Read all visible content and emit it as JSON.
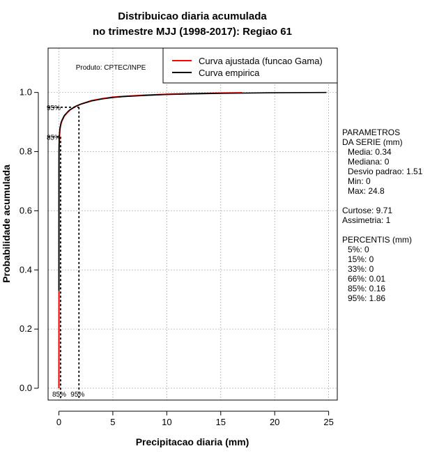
{
  "chart_data": {
    "type": "line",
    "title_line1": "Distribuicao diaria acumulada",
    "title_line2": "no trimestre MJJ (1998-2017): Regiao 61",
    "xlabel": "Precipitacao diaria (mm)",
    "ylabel": "Probabilidade acumulada",
    "xlim": [
      -1,
      25.8
    ],
    "ylim": [
      -0.04,
      1.15
    ],
    "x_ticks": [
      0,
      5,
      10,
      15,
      20,
      25
    ],
    "x_tick_labels": [
      "0",
      "5",
      "10",
      "15",
      "20",
      "25"
    ],
    "y_ticks": [
      0.0,
      0.2,
      0.4,
      0.6,
      0.8,
      1.0
    ],
    "y_tick_labels": [
      "0.0",
      "0.2",
      "0.4",
      "0.6",
      "0.8",
      "1.0"
    ],
    "grid": true,
    "product_label": "Produto: CPTEC/INPE",
    "legend_position": "top-right",
    "series": [
      {
        "name": "Curva ajustada (funcao Gama)",
        "color": "#ff0000",
        "x": [
          0,
          0.02,
          0.05,
          0.1,
          0.2,
          0.3,
          0.5,
          0.8,
          1.0,
          1.5,
          2.0,
          3.0,
          4.0,
          5.0,
          6.0,
          8.0,
          10.0,
          12.0,
          15.0,
          17.0
        ],
        "y": [
          0.0,
          0.8,
          0.85,
          0.875,
          0.895,
          0.905,
          0.92,
          0.933,
          0.94,
          0.952,
          0.96,
          0.972,
          0.979,
          0.984,
          0.987,
          0.991,
          0.994,
          0.996,
          0.998,
          0.999
        ]
      },
      {
        "name": "Curva empirica",
        "color": "#000000",
        "x": [
          0,
          0,
          0.01,
          0.05,
          0.1,
          0.2,
          0.3,
          0.5,
          0.8,
          1.0,
          1.5,
          2.0,
          3.0,
          4.0,
          5.0,
          6.0,
          8.0,
          10.0,
          12.0,
          15.0,
          20.0,
          24.8
        ],
        "y": [
          0.33,
          0.75,
          0.82,
          0.86,
          0.88,
          0.898,
          0.907,
          0.922,
          0.934,
          0.941,
          0.952,
          0.96,
          0.971,
          0.978,
          0.983,
          0.986,
          0.99,
          0.993,
          0.995,
          0.997,
          0.999,
          1.0
        ]
      }
    ],
    "reference_lines": [
      {
        "label": "95%",
        "x": 1.86,
        "y": 0.95,
        "bottom_label": "95%"
      },
      {
        "label": "85%",
        "x": 0.16,
        "y": 0.85,
        "bottom_label": "85%"
      }
    ]
  },
  "stats": {
    "param_header1": "PARAMETROS",
    "param_header2": "DA SERIE (mm)",
    "media": "Media: 0.34",
    "mediana": "Mediana: 0",
    "desvio": "Desvio padrao: 1.51",
    "min": "Min: 0",
    "max": "Max: 24.8",
    "curtose": "Curtose: 9.71",
    "assimetria": "Assimetria: 1",
    "perc_header": "PERCENTIS (mm)",
    "p5": "5%: 0",
    "p15": "15%: 0",
    "p33": "33%: 0",
    "p66": "66%: 0.01",
    "p85": "85%: 0.16",
    "p95": "95%: 1.86"
  }
}
